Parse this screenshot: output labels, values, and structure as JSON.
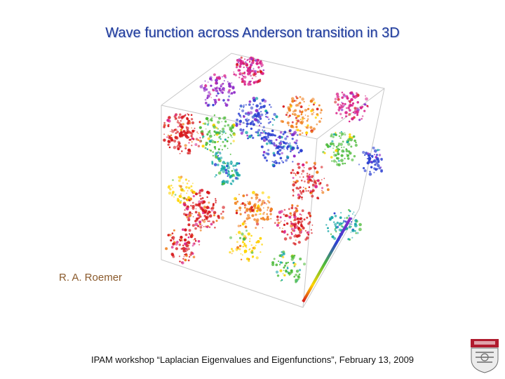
{
  "title": "Wave function across Anderson transition in 3D",
  "author": "R. A. Roemer",
  "footer": "IPAM workshop “Laplacian Eigenvalues and Eigenfunctions”, February 13, 2009",
  "figure": {
    "icon": "wavefunction-cube-visualization",
    "palette": [
      "#d7191c",
      "#f07f1d",
      "#ffd400",
      "#4dbb3a",
      "#14a6a6",
      "#2b3fd1",
      "#8e2bc8",
      "#d9238a"
    ]
  },
  "crest": {
    "icon": "university-crest",
    "colors": [
      "#b01b2e",
      "#6b6b6b"
    ]
  }
}
